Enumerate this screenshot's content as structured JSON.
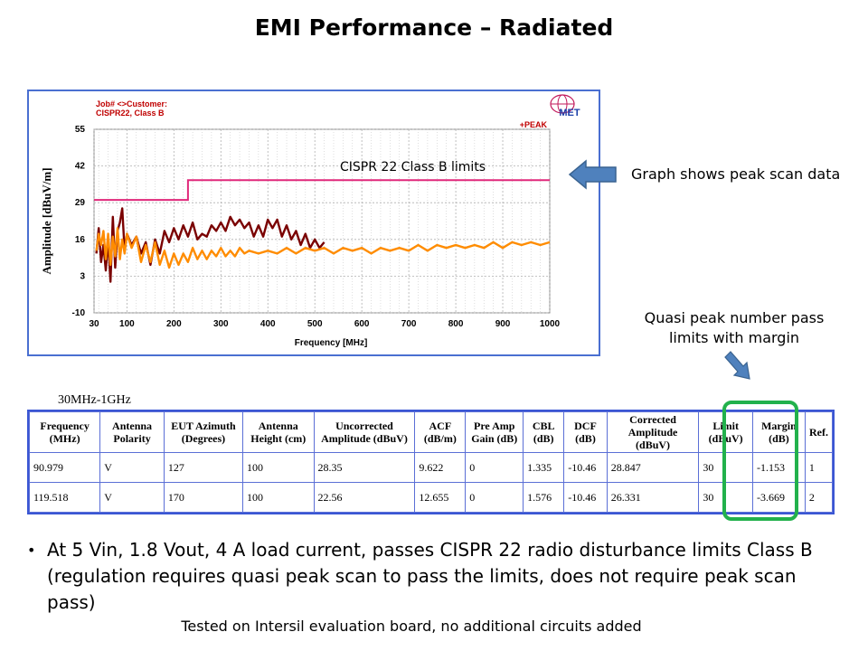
{
  "slide": {
    "title": "EMI Performance – Radiated",
    "callout_peak": "Graph shows peak scan data",
    "callout_qp": "Quasi peak number pass limits with margin",
    "table_caption": "30MHz-1GHz",
    "bullet": "At 5 Vin, 1.8 Vout, 4 A load current, passes CISPR 22 radio disturbance limits Class B (regulation requires quasi peak scan to pass the limits, does not require peak scan pass)",
    "footnote": "Tested on Intersil evaluation board, no additional circuits added"
  },
  "colors": {
    "panel_border": "#4a6fd1",
    "limit_line": "#e0287a",
    "trace_dark": "#7a0000",
    "trace_orange": "#ff8c00",
    "arrow_blue": "#4f81bd",
    "highlight": "#22b14c"
  },
  "chart_data": {
    "type": "line",
    "header_lines": [
      "Job# <>Customer:",
      "CISPR22, Class B"
    ],
    "detector_label": "+PEAK",
    "logo_text": "MET",
    "annotation": "CISPR 22 Class B limits",
    "xlabel": "Frequency [MHz]",
    "ylabel": "Amplitude [dBuV/m]",
    "x_ticks": [
      30,
      100,
      200,
      300,
      400,
      500,
      600,
      700,
      800,
      900,
      1000
    ],
    "y_ticks": [
      55,
      42,
      29,
      16,
      3,
      -10
    ],
    "xlim": [
      30,
      1000
    ],
    "ylim": [
      -10,
      55
    ],
    "limit_line": [
      {
        "x": 30,
        "y": 30
      },
      {
        "x": 230,
        "y": 30
      },
      {
        "x": 230,
        "y": 37
      },
      {
        "x": 1000,
        "y": 37
      }
    ],
    "series": [
      {
        "name": "peak scan (dark)",
        "points": [
          [
            35,
            11
          ],
          [
            40,
            20
          ],
          [
            45,
            8
          ],
          [
            50,
            14
          ],
          [
            55,
            5
          ],
          [
            60,
            16
          ],
          [
            65,
            1
          ],
          [
            70,
            24
          ],
          [
            75,
            6
          ],
          [
            80,
            19
          ],
          [
            85,
            22
          ],
          [
            90,
            27
          ],
          [
            95,
            12
          ],
          [
            100,
            18
          ],
          [
            110,
            14
          ],
          [
            120,
            17
          ],
          [
            130,
            11
          ],
          [
            140,
            15
          ],
          [
            150,
            7
          ],
          [
            160,
            16
          ],
          [
            170,
            11
          ],
          [
            180,
            19
          ],
          [
            190,
            15
          ],
          [
            200,
            20
          ],
          [
            210,
            16
          ],
          [
            220,
            21
          ],
          [
            230,
            17
          ],
          [
            240,
            22
          ],
          [
            250,
            16
          ],
          [
            260,
            18
          ],
          [
            270,
            17
          ],
          [
            280,
            21
          ],
          [
            290,
            19
          ],
          [
            300,
            22
          ],
          [
            310,
            19
          ],
          [
            320,
            24
          ],
          [
            330,
            21
          ],
          [
            340,
            23
          ],
          [
            350,
            20
          ],
          [
            360,
            22
          ],
          [
            370,
            17
          ],
          [
            380,
            21
          ],
          [
            390,
            17
          ],
          [
            400,
            23
          ],
          [
            410,
            20
          ],
          [
            420,
            23
          ],
          [
            430,
            17
          ],
          [
            440,
            21
          ],
          [
            450,
            16
          ],
          [
            460,
            19
          ],
          [
            470,
            14
          ],
          [
            480,
            18
          ],
          [
            490,
            13
          ],
          [
            500,
            16
          ],
          [
            510,
            13
          ],
          [
            520,
            15
          ]
        ]
      },
      {
        "name": "peak scan (orange)",
        "points": [
          [
            35,
            12
          ],
          [
            40,
            18
          ],
          [
            45,
            14
          ],
          [
            50,
            19
          ],
          [
            55,
            9
          ],
          [
            60,
            18
          ],
          [
            65,
            7
          ],
          [
            70,
            17
          ],
          [
            75,
            10
          ],
          [
            80,
            20
          ],
          [
            85,
            9
          ],
          [
            90,
            16
          ],
          [
            95,
            11
          ],
          [
            100,
            18
          ],
          [
            110,
            13
          ],
          [
            120,
            17
          ],
          [
            130,
            8
          ],
          [
            140,
            14
          ],
          [
            150,
            8
          ],
          [
            160,
            15
          ],
          [
            170,
            7
          ],
          [
            180,
            12
          ],
          [
            190,
            6
          ],
          [
            200,
            11
          ],
          [
            210,
            7
          ],
          [
            220,
            11
          ],
          [
            230,
            8
          ],
          [
            240,
            13
          ],
          [
            250,
            9
          ],
          [
            260,
            12
          ],
          [
            270,
            9
          ],
          [
            280,
            12
          ],
          [
            290,
            10
          ],
          [
            300,
            13
          ],
          [
            310,
            10
          ],
          [
            320,
            12
          ],
          [
            330,
            10
          ],
          [
            340,
            13
          ],
          [
            350,
            11
          ],
          [
            360,
            12
          ],
          [
            380,
            11
          ],
          [
            400,
            12
          ],
          [
            420,
            11
          ],
          [
            440,
            13
          ],
          [
            460,
            11
          ],
          [
            480,
            13
          ],
          [
            500,
            12
          ],
          [
            520,
            13
          ],
          [
            540,
            11
          ],
          [
            560,
            13
          ],
          [
            580,
            12
          ],
          [
            600,
            13
          ],
          [
            620,
            11
          ],
          [
            640,
            13
          ],
          [
            660,
            12
          ],
          [
            680,
            13
          ],
          [
            700,
            12
          ],
          [
            720,
            14
          ],
          [
            740,
            12
          ],
          [
            760,
            14
          ],
          [
            780,
            13
          ],
          [
            800,
            14
          ],
          [
            820,
            13
          ],
          [
            840,
            14
          ],
          [
            860,
            13
          ],
          [
            880,
            15
          ],
          [
            900,
            13
          ],
          [
            920,
            15
          ],
          [
            940,
            14
          ],
          [
            960,
            15
          ],
          [
            980,
            14
          ],
          [
            1000,
            15
          ]
        ]
      }
    ]
  },
  "table": {
    "headers": [
      "Frequency (MHz)",
      "Antenna Polarity",
      "EUT Azimuth (Degrees)",
      "Antenna Height (cm)",
      "Uncorrected Amplitude (dBuV)",
      "ACF (dB/m)",
      "Pre Amp Gain (dB)",
      "CBL (dB)",
      "DCF (dB)",
      "Corrected Amplitude (dBuV)",
      "Limit (dBuV)",
      "Margin (dB)",
      "Ref."
    ],
    "rows": [
      [
        "90.979",
        "V",
        "127",
        "100",
        "28.35",
        "9.622",
        "0",
        "1.335",
        "-10.46",
        "28.847",
        "30",
        "-1.153",
        "1"
      ],
      [
        "119.518",
        "V",
        "170",
        "100",
        "22.56",
        "12.655",
        "0",
        "1.576",
        "-10.46",
        "26.331",
        "30",
        "-3.669",
        "2"
      ]
    ]
  }
}
